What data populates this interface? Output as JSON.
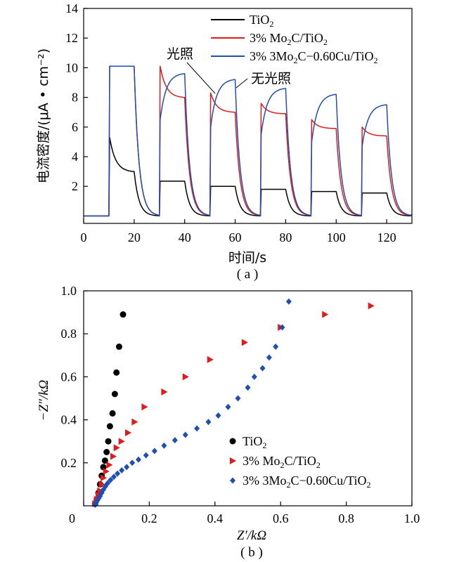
{
  "colors": {
    "tio2": "#000000",
    "mo2c": "#e31a1c",
    "cu": "#1f4fb0",
    "axis": "#000000"
  },
  "chart_data": [
    {
      "panel_label": "( a )",
      "type": "line",
      "xlabel": "时间/s",
      "ylabel": "电流密度/(μA • cm⁻²)",
      "xlim": [
        0,
        130
      ],
      "ylim": [
        -0.5,
        14
      ],
      "xticks": [
        0,
        20,
        40,
        60,
        80,
        100,
        120
      ],
      "yticks": [
        2,
        4,
        6,
        8,
        10,
        12,
        14
      ],
      "legend_position": "top-right",
      "legend": [
        {
          "key": "tio2",
          "base": "TiO",
          "sub": "2",
          "rest": "",
          "sub2": "",
          "tail": ""
        },
        {
          "key": "mo2c",
          "base": "3% Mo",
          "sub": "2",
          "rest": "C/TiO",
          "sub2": "2",
          "tail": ""
        },
        {
          "key": "cu",
          "base": "3% 3Mo",
          "sub": "2",
          "rest": "C−0.60Cu/TiO",
          "sub2": "2",
          "tail": ""
        }
      ],
      "annotations": {
        "light_on": "光照",
        "light_off": "无光照"
      },
      "light_periods": [
        [
          10,
          20
        ],
        [
          30,
          40
        ],
        [
          50,
          60
        ],
        [
          70,
          80
        ],
        [
          90,
          100
        ],
        [
          110,
          120
        ]
      ],
      "series": [
        {
          "name": "TiO2",
          "key": "tio2",
          "on_start": [
            5.3,
            2.35,
            2.0,
            1.8,
            1.65,
            1.55
          ],
          "on_end": [
            3.0,
            2.35,
            2.0,
            1.8,
            1.65,
            1.55
          ],
          "off_level": 0.0
        },
        {
          "name": "3% Mo2C/TiO2",
          "key": "mo2c",
          "on_start": [
            10.1,
            10.1,
            8.3,
            7.6,
            6.5,
            6.0
          ],
          "on_end": [
            10.1,
            8.0,
            7.0,
            6.9,
            5.9,
            5.4
          ],
          "off_level": 0.0
        },
        {
          "name": "3% 3Mo2C-0.60Cu/TiO2",
          "key": "cu",
          "on_start": [
            10.1,
            6.5,
            6.0,
            5.5,
            5.0,
            4.7
          ],
          "on_end": [
            10.1,
            9.6,
            9.2,
            8.6,
            8.2,
            7.5
          ],
          "off_level": 0.0
        }
      ]
    },
    {
      "panel_label": "( b )",
      "type": "scatter",
      "xlabel": "Z′/kΩ",
      "ylabel": "−Z″/kΩ",
      "xlim": [
        0,
        1.0
      ],
      "ylim": [
        0,
        1.0
      ],
      "xticks": [
        0,
        0.2,
        0.4,
        0.6,
        0.8,
        1.0
      ],
      "xtick_labels": [
        "0",
        "0.2",
        "0.4",
        "0.6",
        "0.8",
        "1.0"
      ],
      "yticks": [
        0.2,
        0.4,
        0.6,
        0.8,
        1.0
      ],
      "ytick_labels": [
        "0.2",
        "0.4",
        "0.6",
        "0.8",
        "1.0"
      ],
      "origin_label": "0",
      "legend_position": "bottom-right",
      "legend": [
        {
          "key": "tio2",
          "marker": "circle",
          "base": "TiO",
          "sub": "2",
          "rest": "",
          "sub2": "",
          "tail": ""
        },
        {
          "key": "mo2c",
          "marker": "triangle",
          "base": "3% Mo",
          "sub": "2",
          "rest": "C/TiO",
          "sub2": "2",
          "tail": ""
        },
        {
          "key": "cu",
          "marker": "diamond",
          "base": "3% 3Mo",
          "sub": "2",
          "rest": "C−0.60Cu/TiO",
          "sub2": "2",
          "tail": ""
        }
      ],
      "series": [
        {
          "name": "TiO2",
          "key": "tio2",
          "marker": "circle",
          "x": [
            0.035,
            0.04,
            0.045,
            0.05,
            0.055,
            0.06,
            0.065,
            0.07,
            0.075,
            0.08,
            0.088,
            0.095,
            0.1,
            0.108,
            0.12
          ],
          "y": [
            0.01,
            0.03,
            0.06,
            0.1,
            0.14,
            0.18,
            0.21,
            0.25,
            0.3,
            0.37,
            0.43,
            0.52,
            0.62,
            0.74,
            0.89
          ]
        },
        {
          "name": "3% Mo2C/TiO2",
          "key": "mo2c",
          "marker": "triangle",
          "x": [
            0.035,
            0.04,
            0.045,
            0.05,
            0.055,
            0.06,
            0.068,
            0.078,
            0.09,
            0.1,
            0.115,
            0.135,
            0.155,
            0.185,
            0.245,
            0.31,
            0.385,
            0.49,
            0.6,
            0.735,
            0.875
          ],
          "y": [
            0.01,
            0.03,
            0.05,
            0.07,
            0.1,
            0.13,
            0.16,
            0.19,
            0.23,
            0.27,
            0.3,
            0.34,
            0.39,
            0.46,
            0.53,
            0.6,
            0.68,
            0.76,
            0.83,
            0.89,
            0.93
          ]
        },
        {
          "name": "3% 3Mo2C-0.60Cu/TiO2",
          "key": "cu",
          "marker": "diamond",
          "x": [
            0.035,
            0.038,
            0.042,
            0.046,
            0.05,
            0.055,
            0.06,
            0.066,
            0.073,
            0.082,
            0.092,
            0.103,
            0.116,
            0.131,
            0.148,
            0.167,
            0.19,
            0.216,
            0.245,
            0.278,
            0.31,
            0.345,
            0.38,
            0.41,
            0.44,
            0.47,
            0.5,
            0.52,
            0.545,
            0.565,
            0.585,
            0.605,
            0.625
          ],
          "y": [
            0.005,
            0.015,
            0.025,
            0.035,
            0.045,
            0.06,
            0.075,
            0.09,
            0.105,
            0.12,
            0.135,
            0.15,
            0.165,
            0.18,
            0.2,
            0.215,
            0.235,
            0.255,
            0.28,
            0.305,
            0.33,
            0.36,
            0.39,
            0.42,
            0.46,
            0.5,
            0.55,
            0.6,
            0.64,
            0.69,
            0.74,
            0.83,
            0.95
          ]
        }
      ]
    }
  ]
}
